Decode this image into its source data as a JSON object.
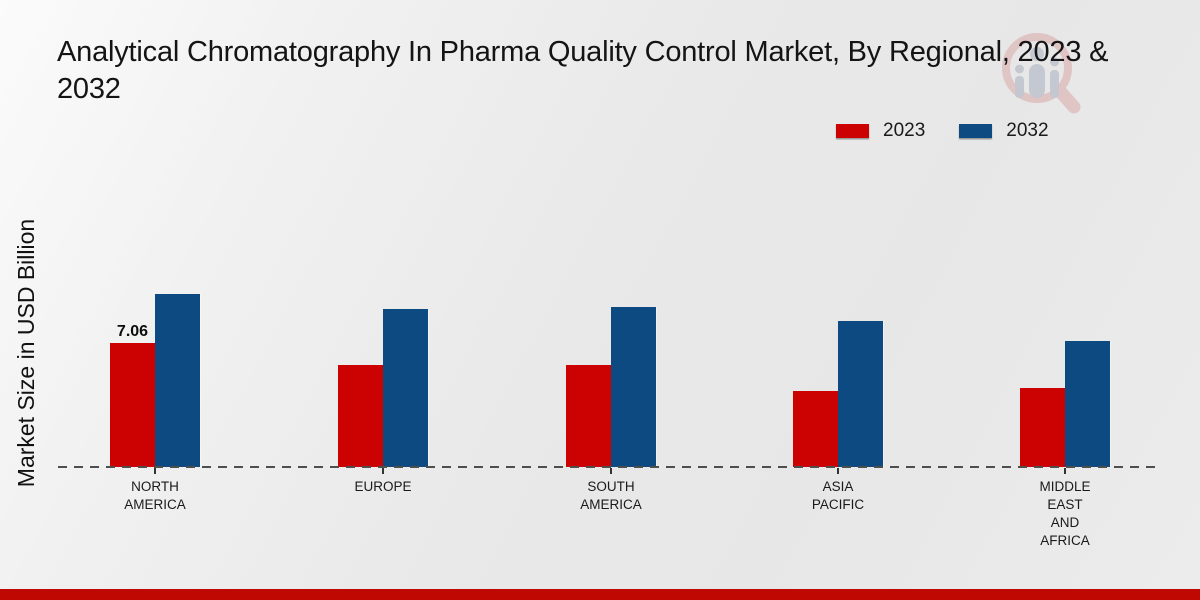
{
  "header": {
    "title": "Analytical Chromatography In Pharma Quality Control Market, By Regional, 2023 & 2032"
  },
  "legend": {
    "items": [
      {
        "label": "2023",
        "color": "#cc0101"
      },
      {
        "label": "2032",
        "color": "#0d4a82"
      }
    ]
  },
  "chart_data": {
    "type": "bar",
    "title": "Analytical Chromatography In Pharma Quality Control Market, By Regional, 2023 & 2032",
    "xlabel": "",
    "ylabel": "Market Size in USD Billion",
    "ylim": [
      0,
      10.5
    ],
    "grid": false,
    "legend_position": "top-right",
    "baseline_style": "dashed",
    "categories": [
      "NORTH AMERICA",
      "EUROPE",
      "SOUTH AMERICA",
      "ASIA PACIFIC",
      "MIDDLE EAST AND AFRICA"
    ],
    "categories_lines": [
      [
        "NORTH",
        "AMERICA"
      ],
      [
        "EUROPE"
      ],
      [
        "SOUTH",
        "AMERICA"
      ],
      [
        "ASIA",
        "PACIFIC"
      ],
      [
        "MIDDLE",
        "EAST",
        "AND",
        "AFRICA"
      ]
    ],
    "series": [
      {
        "name": "2023",
        "color": "#cc0101",
        "values": [
          7.06,
          5.8,
          5.8,
          4.3,
          4.5
        ]
      },
      {
        "name": "2032",
        "color": "#0d4a82",
        "values": [
          9.85,
          9.0,
          9.1,
          8.3,
          7.2
        ]
      }
    ],
    "annotations": [
      {
        "series_index": 0,
        "category_index": 0,
        "text": "7.06"
      }
    ]
  },
  "footer": {
    "color": "#c00802"
  }
}
